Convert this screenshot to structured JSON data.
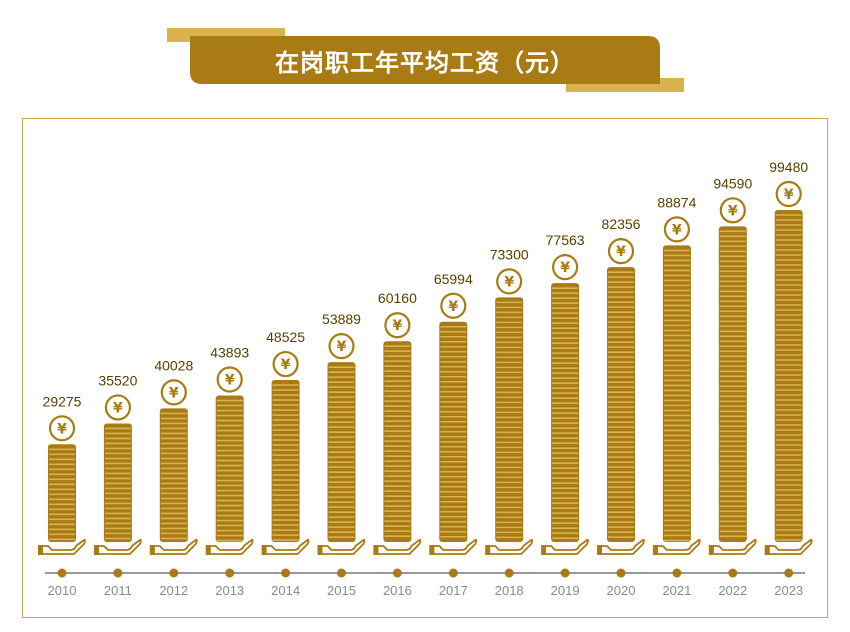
{
  "page": {
    "title": "在岗职工年平均工资（元）"
  },
  "colors": {
    "gold": "#a87b14",
    "gold_light": "#d9b24e",
    "frame": "#c9a94e",
    "axis": "#999999",
    "label": "#5a4000"
  },
  "chart_data": {
    "type": "bar",
    "title": "在岗职工年平均工资（元）",
    "categories": [
      "2010",
      "2011",
      "2012",
      "2013",
      "2014",
      "2015",
      "2016",
      "2017",
      "2018",
      "2019",
      "2020",
      "2021",
      "2022",
      "2023"
    ],
    "values": [
      29275,
      35520,
      40028,
      43893,
      48525,
      53889,
      60160,
      65994,
      73300,
      77563,
      82356,
      88874,
      94590,
      99480
    ],
    "xlabel": "",
    "ylabel": "",
    "ylim": [
      0,
      100000
    ],
    "grid": false,
    "legend": "none",
    "value_labels": "above-bars",
    "bar_icon": "yuan-coin-icon",
    "base_icon": "hand-icon"
  }
}
